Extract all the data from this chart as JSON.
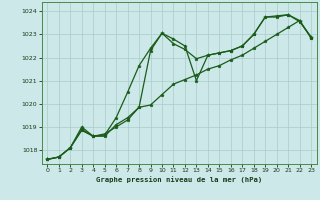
{
  "title": "Graphe pression niveau de la mer (hPa)",
  "background_color": "#cce8e8",
  "grid_color": "#aacccc",
  "line_color": "#1a5c1a",
  "xlim": [
    -0.5,
    23.5
  ],
  "ylim": [
    1017.4,
    1024.4
  ],
  "yticks": [
    1018,
    1019,
    1020,
    1021,
    1022,
    1023,
    1024
  ],
  "xticks": [
    0,
    1,
    2,
    3,
    4,
    5,
    6,
    7,
    8,
    9,
    10,
    11,
    12,
    13,
    14,
    15,
    16,
    17,
    18,
    19,
    20,
    21,
    22,
    23
  ],
  "series1_x": [
    0,
    1,
    2,
    3,
    4,
    5,
    6,
    7,
    8,
    9,
    10,
    11,
    12,
    13,
    14,
    15,
    16,
    17,
    18,
    19,
    20,
    21,
    22,
    23
  ],
  "series1_y": [
    1017.6,
    1017.7,
    1018.1,
    1018.9,
    1018.6,
    1018.6,
    1019.1,
    1019.4,
    1019.85,
    1022.3,
    1023.05,
    1022.8,
    1022.5,
    1021.0,
    1022.1,
    1022.2,
    1022.3,
    1022.5,
    1023.0,
    1023.75,
    1023.75,
    1023.85,
    1023.6,
    1022.85
  ],
  "series2_x": [
    0,
    1,
    2,
    3,
    4,
    5,
    6,
    7,
    8,
    9,
    10,
    11,
    12,
    13,
    14,
    15,
    16,
    17,
    18,
    19,
    20,
    21,
    22,
    23
  ],
  "series2_y": [
    1017.6,
    1017.7,
    1018.1,
    1019.0,
    1018.6,
    1018.7,
    1019.0,
    1019.3,
    1019.85,
    1019.95,
    1020.4,
    1020.85,
    1021.05,
    1021.25,
    1021.5,
    1021.65,
    1021.9,
    1022.1,
    1022.4,
    1022.7,
    1023.0,
    1023.3,
    1023.6,
    1022.85
  ],
  "series3_x": [
    0,
    1,
    2,
    3,
    4,
    5,
    6,
    7,
    8,
    9,
    10,
    11,
    12,
    13,
    14,
    15,
    16,
    17,
    18,
    19,
    20,
    21,
    22,
    23
  ],
  "series3_y": [
    1017.6,
    1017.7,
    1018.1,
    1018.85,
    1018.6,
    1018.65,
    1019.4,
    1020.5,
    1021.65,
    1022.4,
    1023.05,
    1022.6,
    1022.35,
    1021.95,
    1022.1,
    1022.2,
    1022.3,
    1022.5,
    1023.0,
    1023.75,
    1023.8,
    1023.85,
    1023.55,
    1022.9
  ]
}
